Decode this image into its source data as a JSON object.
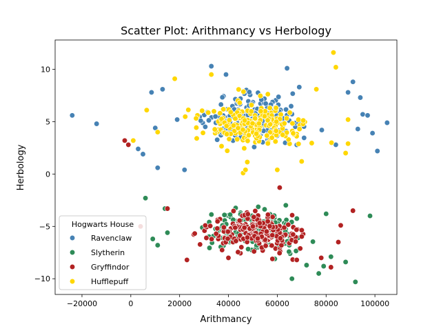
{
  "chart_data": {
    "type": "scatter",
    "title": "Scatter Plot: Arithmancy vs Herbology",
    "xlabel": "Arithmancy",
    "ylabel": "Herbology",
    "xlim": [
      -31000,
      109000
    ],
    "ylim": [
      -11.5,
      12.8
    ],
    "xticks": [
      -20000,
      0,
      20000,
      40000,
      60000,
      80000,
      100000
    ],
    "yticks": [
      -10,
      -5,
      0,
      5,
      10
    ],
    "grid": false,
    "legend": {
      "title": "Hogwarts House",
      "position": "lower-left"
    },
    "series": [
      {
        "name": "Ravenclaw",
        "color": "#4682b4",
        "center": [
          50000,
          5.2
        ],
        "spread": [
          17000,
          1.7
        ],
        "count": 220,
        "outliers": [
          [
            -24000,
            5.6
          ],
          [
            -14000,
            4.8
          ],
          [
            3000,
            2.4
          ],
          [
            5000,
            1.9
          ],
          [
            8500,
            7.8
          ],
          [
            10000,
            4.4
          ],
          [
            11000,
            0.6
          ],
          [
            13000,
            8.1
          ],
          [
            19000,
            5.2
          ],
          [
            22000,
            0.4
          ],
          [
            33000,
            10.3
          ],
          [
            39000,
            9.5
          ],
          [
            64000,
            10.1
          ],
          [
            69000,
            8.3
          ],
          [
            84000,
            2.8
          ],
          [
            89000,
            7.8
          ],
          [
            91000,
            8.8
          ],
          [
            94000,
            7.3
          ],
          [
            95000,
            5.7
          ],
          [
            97000,
            5.6
          ],
          [
            99000,
            3.9
          ],
          [
            101000,
            2.2
          ],
          [
            105000,
            4.9
          ],
          [
            93000,
            4.3
          ]
        ]
      },
      {
        "name": "Slytherin",
        "color": "#2e8b57",
        "center": [
          50000,
          -5.3
        ],
        "spread": [
          16000,
          1.5
        ],
        "count": 190,
        "outliers": [
          [
            6000,
            -2.3
          ],
          [
            9000,
            -6.2
          ],
          [
            11000,
            -6.8
          ],
          [
            15000,
            -5.6
          ],
          [
            14000,
            -3.3
          ],
          [
            59000,
            -8.1
          ],
          [
            66000,
            -10.0
          ],
          [
            72000,
            -8.7
          ],
          [
            77000,
            -9.5
          ],
          [
            82000,
            -7.9
          ],
          [
            88000,
            -8.4
          ],
          [
            92000,
            -10.3
          ],
          [
            98000,
            -4.0
          ],
          [
            80000,
            -3.8
          ],
          [
            79000,
            -8.8
          ]
        ]
      },
      {
        "name": "Gryffindor",
        "color": "#b22222",
        "center": [
          52000,
          -5.5
        ],
        "spread": [
          16000,
          1.4
        ],
        "count": 190,
        "outliers": [
          [
            -2500,
            3.2
          ],
          [
            -1000,
            2.8
          ],
          [
            4000,
            -5.0
          ],
          [
            15000,
            -3.3
          ],
          [
            23000,
            -8.2
          ],
          [
            40000,
            -8.0
          ],
          [
            50000,
            -5.0
          ],
          [
            58000,
            -8.1
          ],
          [
            61000,
            -1.3
          ],
          [
            68000,
            -8.2
          ],
          [
            78000,
            -8.0
          ],
          [
            82000,
            -8.9
          ],
          [
            85000,
            -6.5
          ],
          [
            91000,
            -3.5
          ],
          [
            86000,
            -4.9
          ]
        ]
      },
      {
        "name": "Hufflepuff",
        "color": "#ffd700",
        "center": [
          50000,
          4.6
        ],
        "spread": [
          17000,
          1.9
        ],
        "count": 200,
        "outliers": [
          [
            1000,
            3.2
          ],
          [
            6500,
            6.1
          ],
          [
            11000,
            4.0
          ],
          [
            18000,
            9.1
          ],
          [
            33000,
            9.5
          ],
          [
            46000,
            0.1
          ],
          [
            47000,
            0.4
          ],
          [
            60000,
            0.4
          ],
          [
            70000,
            1.2
          ],
          [
            76000,
            8.1
          ],
          [
            83000,
            11.6
          ],
          [
            84000,
            10.2
          ],
          [
            88000,
            2.0
          ],
          [
            89000,
            2.9
          ],
          [
            89000,
            5.2
          ]
        ]
      }
    ]
  }
}
